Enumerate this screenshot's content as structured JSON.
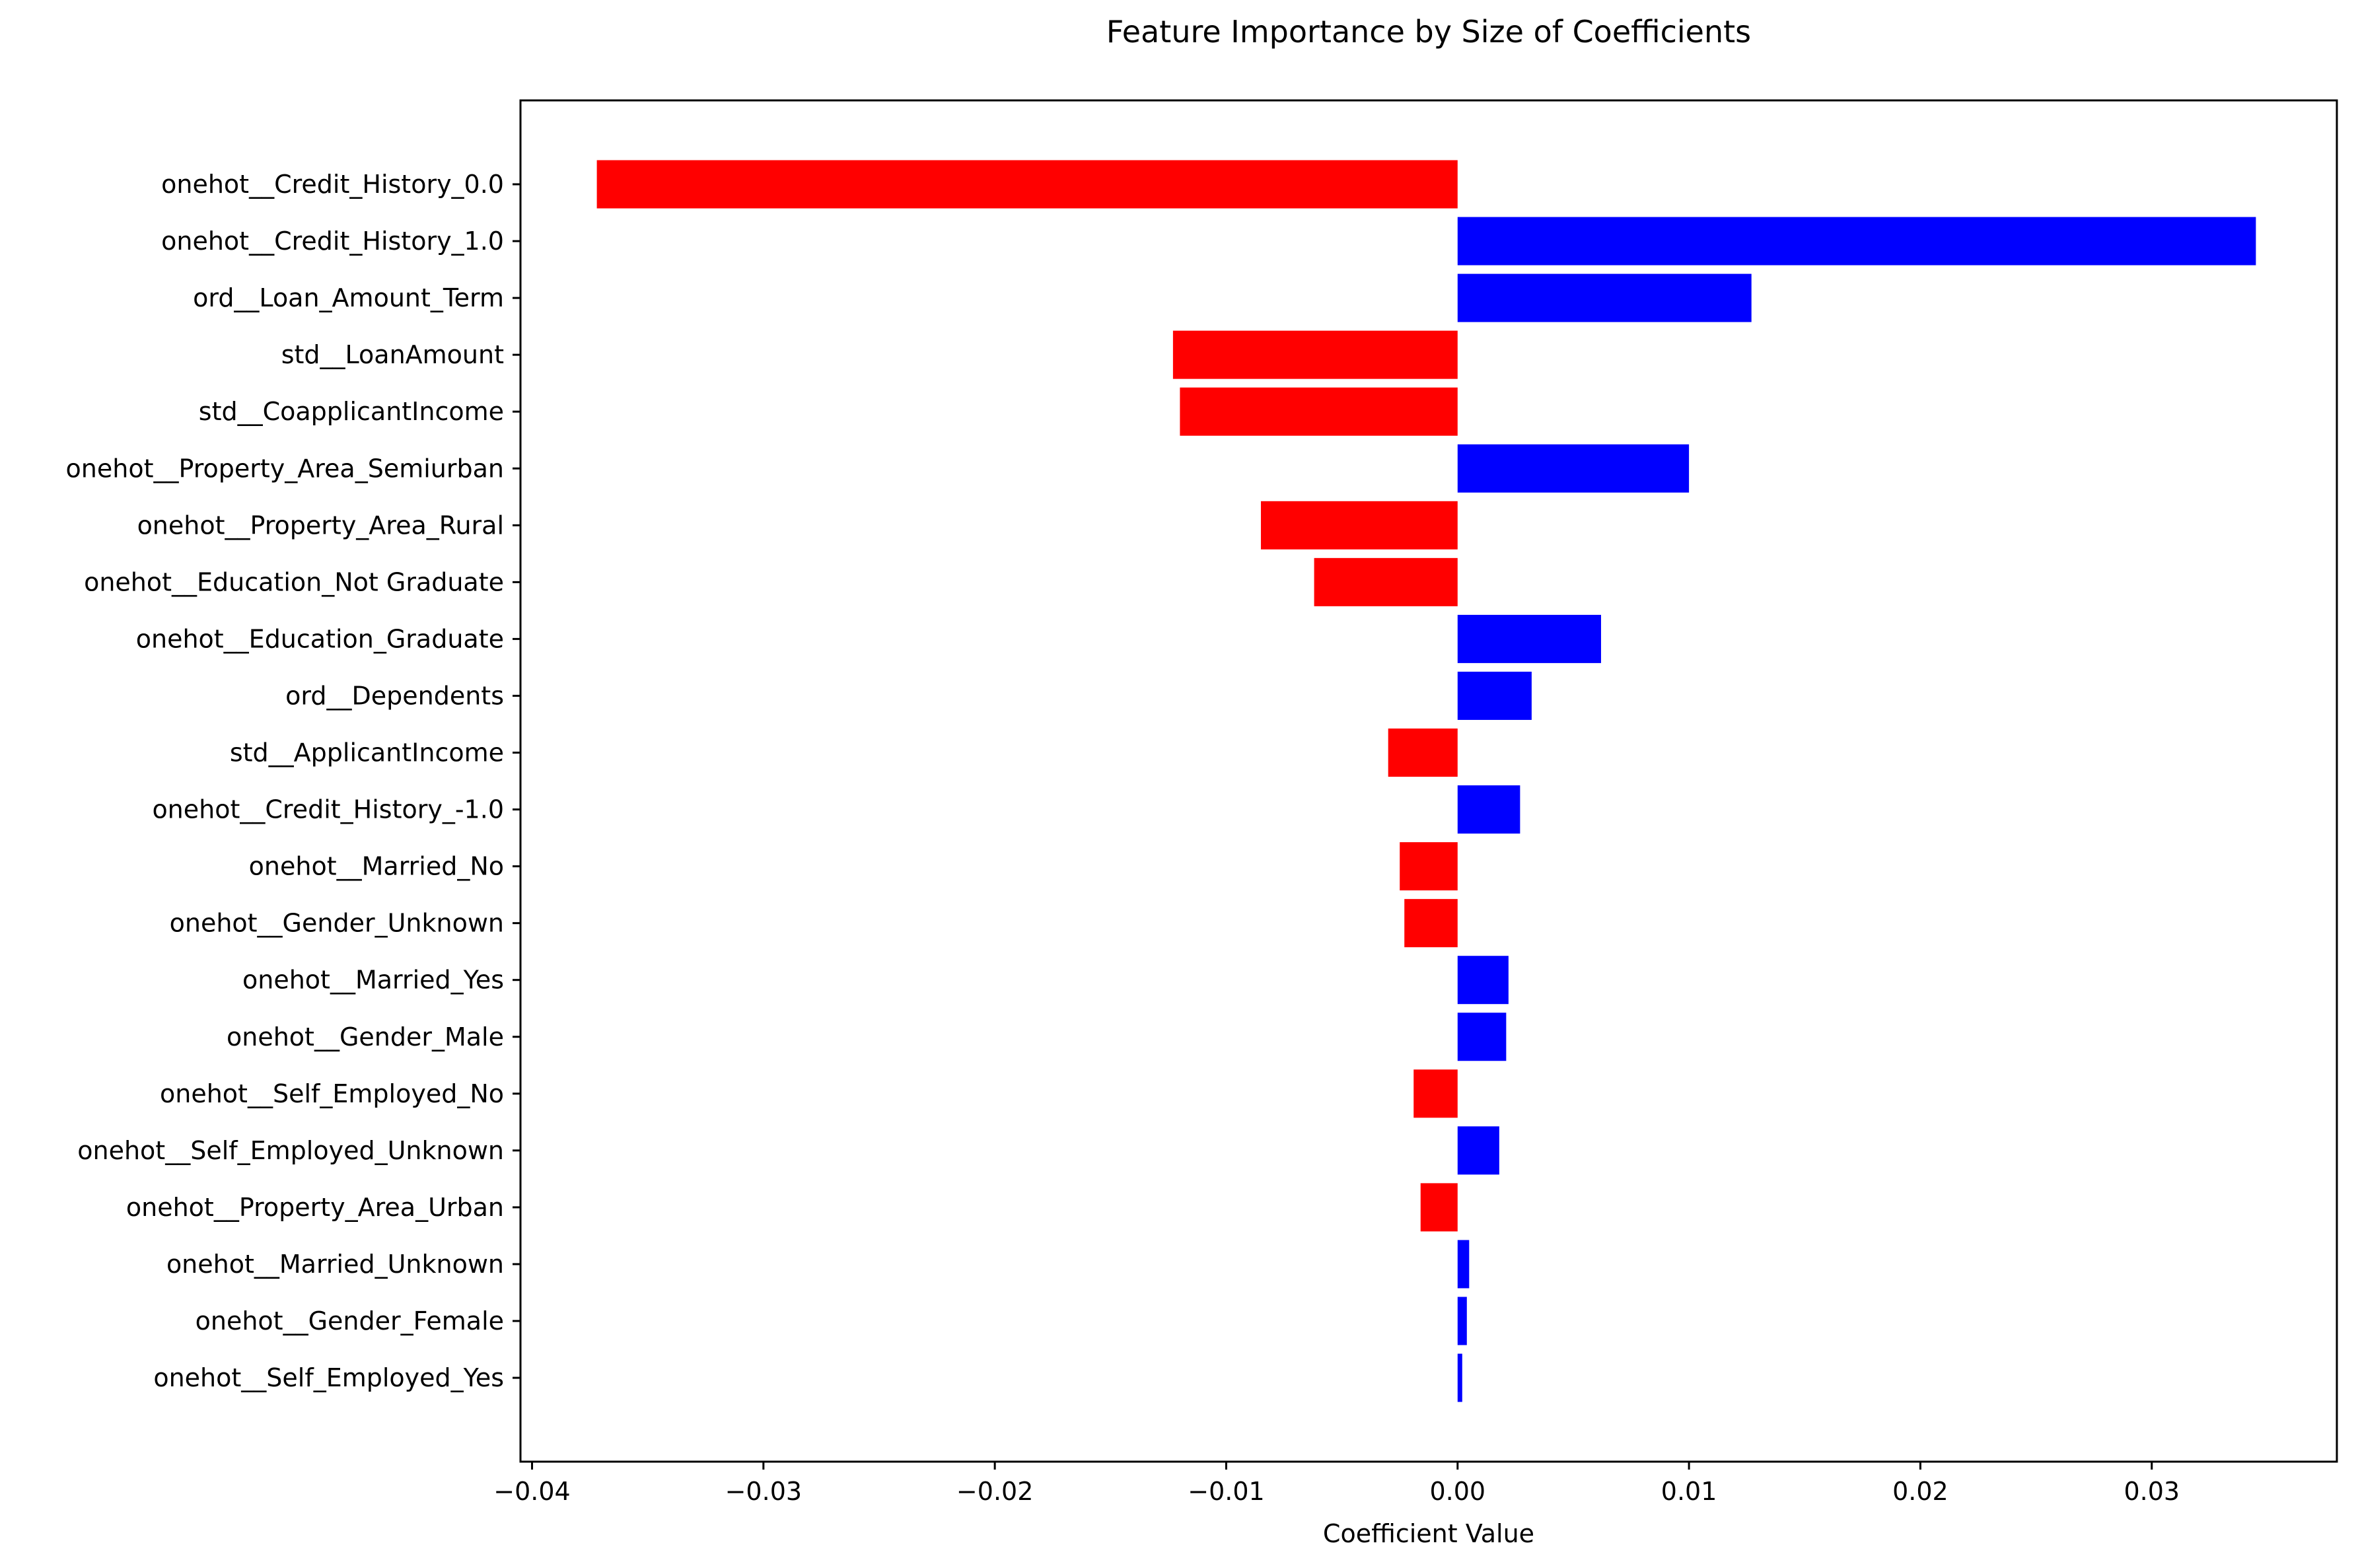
{
  "chart_data": {
    "type": "bar",
    "orientation": "horizontal",
    "title": "Feature Importance by Size of Coefficients",
    "xlabel": "Coefficient Value",
    "ylabel": "",
    "xlim": [
      -0.0405,
      0.038
    ],
    "x_ticks": [
      -0.04,
      -0.03,
      -0.02,
      -0.01,
      0.0,
      0.01,
      0.02,
      0.03
    ],
    "x_tick_labels": [
      "−0.04",
      "−0.03",
      "−0.02",
      "−0.01",
      "0.00",
      "0.01",
      "0.02",
      "0.03"
    ],
    "grid": false,
    "legend": "none",
    "colors": {
      "negative": "#ff0000",
      "positive": "#0000ff"
    },
    "categories": [
      "onehot__Credit_History_0.0",
      "onehot__Credit_History_1.0",
      "ord__Loan_Amount_Term",
      "std__LoanAmount",
      "std__CoapplicantIncome",
      "onehot__Property_Area_Semiurban",
      "onehot__Property_Area_Rural",
      "onehot__Education_Not Graduate",
      "onehot__Education_Graduate",
      "ord__Dependents",
      "std__ApplicantIncome",
      "onehot__Credit_History_-1.0",
      "onehot__Married_No",
      "onehot__Gender_Unknown",
      "onehot__Married_Yes",
      "onehot__Gender_Male",
      "onehot__Self_Employed_No",
      "onehot__Self_Employed_Unknown",
      "onehot__Property_Area_Urban",
      "onehot__Married_Unknown",
      "onehot__Gender_Female",
      "onehot__Self_Employed_Yes"
    ],
    "values": [
      -0.0372,
      0.0345,
      0.0127,
      -0.0123,
      -0.012,
      0.01,
      -0.0085,
      -0.0062,
      0.0062,
      0.0032,
      -0.003,
      0.0027,
      -0.0025,
      -0.0023,
      0.0022,
      0.0021,
      -0.0019,
      0.0018,
      -0.0016,
      0.0005,
      0.0004,
      0.0002
    ]
  }
}
